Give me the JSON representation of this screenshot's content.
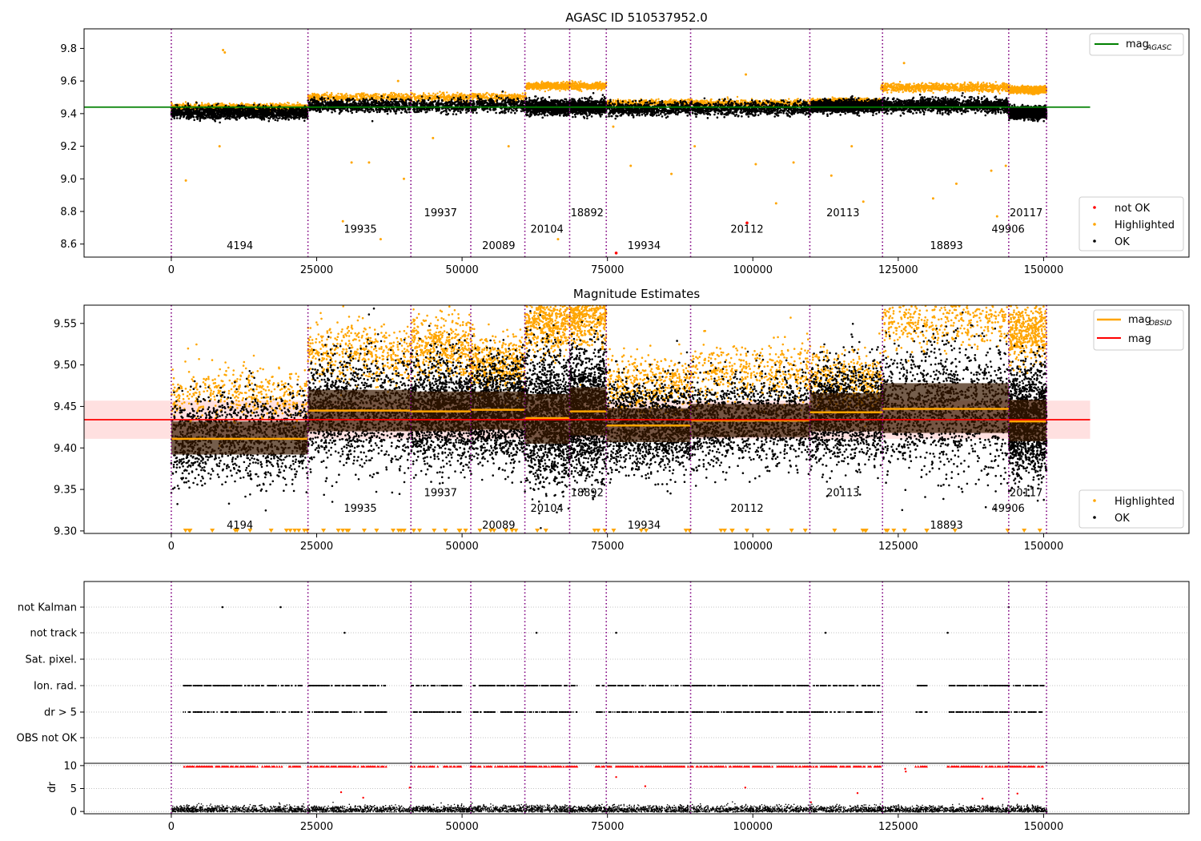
{
  "chart_data": [
    {
      "type": "scatter",
      "title": "AGASC ID 510537952.0",
      "xlim": [
        -15000,
        175000
      ],
      "ylim": [
        8.52,
        9.92
      ],
      "xticks": [
        0,
        25000,
        50000,
        75000,
        100000,
        125000,
        150000
      ],
      "xtick_labels": [
        "0",
        "25000",
        "50000",
        "75000",
        "100000",
        "125000",
        "150000"
      ],
      "yticks": [
        8.6,
        8.8,
        9.0,
        9.2,
        9.4,
        9.6,
        9.8
      ],
      "ytick_labels": [
        "8.6",
        "8.8",
        "9.0",
        "9.2",
        "9.4",
        "9.6",
        "9.8"
      ],
      "legend_top": {
        "placement": "upper-right",
        "entries": [
          {
            "label": "mag",
            "sub": "AGASC",
            "color": "#008000",
            "kind": "line"
          }
        ]
      },
      "legend_bottom": {
        "placement": "lower-right",
        "entries": [
          {
            "label": "not OK",
            "color": "#ff0000",
            "kind": "dot"
          },
          {
            "label": "Highlighted",
            "color": "#ffa500",
            "kind": "dot"
          },
          {
            "label": "OK",
            "color": "#000000",
            "kind": "dot"
          }
        ]
      },
      "mag_agasc": 9.44,
      "series": [
        {
          "name": "OK",
          "color": "#000000",
          "segments": [
            {
              "x": [
                0,
                23500
              ],
              "center": 9.405,
              "spread": 0.035
            },
            {
              "x": [
                23500,
                61000
              ],
              "center": 9.45,
              "spread": 0.04
            },
            {
              "x": [
                61000,
                74800
              ],
              "center": 9.44,
              "spread": 0.045
            },
            {
              "x": [
                74800,
                110000
              ],
              "center": 9.43,
              "spread": 0.04
            },
            {
              "x": [
                110000,
                122000
              ],
              "center": 9.445,
              "spread": 0.035
            },
            {
              "x": [
                122000,
                144000
              ],
              "center": 9.45,
              "spread": 0.04
            },
            {
              "x": [
                144000,
                150500
              ],
              "center": 9.405,
              "spread": 0.035
            }
          ]
        },
        {
          "name": "Highlighted",
          "color": "#ffa500",
          "segments": [
            {
              "x": [
                0,
                23500
              ],
              "center": 9.44,
              "spread": 0.02
            },
            {
              "x": [
                23500,
                61000
              ],
              "center": 9.5,
              "spread": 0.025
            },
            {
              "x": [
                61000,
                74800
              ],
              "center": 9.57,
              "spread": 0.02
            },
            {
              "x": [
                74800,
                110000
              ],
              "center": 9.465,
              "spread": 0.02
            },
            {
              "x": [
                110000,
                122000
              ],
              "center": 9.475,
              "spread": 0.015
            },
            {
              "x": [
                122000,
                144000
              ],
              "center": 9.56,
              "spread": 0.025
            },
            {
              "x": [
                144000,
                150500
              ],
              "center": 9.545,
              "spread": 0.02
            }
          ],
          "outliers": [
            [
              8900,
              9.79
            ],
            [
              9200,
              9.775
            ],
            [
              2500,
              8.99
            ],
            [
              8300,
              9.2
            ],
            [
              36000,
              8.63
            ],
            [
              29500,
              8.74
            ],
            [
              39000,
              9.6
            ],
            [
              40000,
              9.0
            ],
            [
              31000,
              9.1
            ],
            [
              34000,
              9.1
            ],
            [
              66500,
              8.63
            ],
            [
              76000,
              9.32
            ],
            [
              79000,
              9.08
            ],
            [
              86000,
              9.03
            ],
            [
              98800,
              9.64
            ],
            [
              100500,
              9.09
            ],
            [
              104000,
              8.85
            ],
            [
              107000,
              9.1
            ],
            [
              113500,
              9.02
            ],
            [
              119000,
              8.86
            ],
            [
              126000,
              9.71
            ],
            [
              131000,
              8.88
            ],
            [
              135000,
              8.97
            ],
            [
              141000,
              9.05
            ],
            [
              142000,
              8.77
            ],
            [
              143500,
              9.08
            ],
            [
              58000,
              9.2
            ],
            [
              45000,
              9.25
            ],
            [
              90000,
              9.2
            ],
            [
              117000,
              9.2
            ]
          ]
        },
        {
          "name": "not OK",
          "color": "#ff0000",
          "points": [
            [
              99000,
              8.73
            ],
            [
              76500,
              8.545
            ]
          ]
        }
      ],
      "obsid_boundaries": [
        0,
        23500,
        41200,
        51500,
        60800,
        68500,
        74800,
        89300,
        109800,
        122300,
        144000,
        150500
      ],
      "obsid_labels": [
        {
          "label": "4194",
          "x": 11800,
          "y": 8.57
        },
        {
          "label": "19935",
          "x": 32500,
          "y": 8.67
        },
        {
          "label": "19937",
          "x": 46300,
          "y": 8.77
        },
        {
          "label": "20089",
          "x": 56300,
          "y": 8.57
        },
        {
          "label": "20104",
          "x": 64600,
          "y": 8.67
        },
        {
          "label": "18892",
          "x": 71500,
          "y": 8.77
        },
        {
          "label": "19934",
          "x": 81300,
          "y": 8.57
        },
        {
          "label": "20112",
          "x": 99000,
          "y": 8.67
        },
        {
          "label": "20113",
          "x": 115500,
          "y": 8.77
        },
        {
          "label": "18893",
          "x": 133300,
          "y": 8.57
        },
        {
          "label": "49906",
          "x": 143900,
          "y": 8.67
        },
        {
          "label": "20117",
          "x": 147000,
          "y": 8.77
        }
      ]
    },
    {
      "type": "scatter",
      "title": "Magnitude Estimates",
      "xlim": [
        -15000,
        175000
      ],
      "ylim": [
        9.297,
        9.572
      ],
      "xticks": [
        0,
        25000,
        50000,
        75000,
        100000,
        125000,
        150000
      ],
      "xtick_labels": [
        "0",
        "25000",
        "50000",
        "75000",
        "100000",
        "125000",
        "150000"
      ],
      "yticks": [
        9.3,
        9.35,
        9.4,
        9.45,
        9.5,
        9.55
      ],
      "ytick_labels": [
        "9.30",
        "9.35",
        "9.40",
        "9.45",
        "9.50",
        "9.55"
      ],
      "legend_top": {
        "placement": "upper-right",
        "entries": [
          {
            "label": "mag",
            "sub": "OBSID",
            "color": "#ffa500",
            "kind": "line"
          },
          {
            "label": "mag",
            "sub": "",
            "color": "#ff0000",
            "kind": "line"
          }
        ]
      },
      "legend_bottom": {
        "placement": "lower-right",
        "entries": [
          {
            "label": "Highlighted",
            "color": "#ffa500",
            "kind": "dot"
          },
          {
            "label": "OK",
            "color": "#000000",
            "kind": "dot"
          }
        ]
      },
      "mag": 9.434,
      "mag_band": [
        9.411,
        9.457
      ],
      "mag_obsid": [
        {
          "x": [
            0,
            23500
          ],
          "mag": 9.411,
          "band": [
            9.392,
            9.432
          ]
        },
        {
          "x": [
            23500,
            41200
          ],
          "mag": 9.445,
          "band": [
            9.42,
            9.47
          ]
        },
        {
          "x": [
            41200,
            51500
          ],
          "mag": 9.444,
          "band": [
            9.42,
            9.468
          ]
        },
        {
          "x": [
            51500,
            60800
          ],
          "mag": 9.446,
          "band": [
            9.422,
            9.468
          ]
        },
        {
          "x": [
            60800,
            68500
          ],
          "mag": 9.436,
          "band": [
            9.405,
            9.465
          ]
        },
        {
          "x": [
            68500,
            74800
          ],
          "mag": 9.444,
          "band": [
            9.415,
            9.473
          ]
        },
        {
          "x": [
            74800,
            89300
          ],
          "mag": 9.427,
          "band": [
            9.407,
            9.448
          ]
        },
        {
          "x": [
            89300,
            109800
          ],
          "mag": 9.433,
          "band": [
            9.413,
            9.453
          ]
        },
        {
          "x": [
            109800,
            122300
          ],
          "mag": 9.443,
          "band": [
            9.42,
            9.466
          ]
        },
        {
          "x": [
            122300,
            144000
          ],
          "mag": 9.447,
          "band": [
            9.418,
            9.478
          ]
        },
        {
          "x": [
            144000,
            150500
          ],
          "mag": 9.432,
          "band": [
            9.408,
            9.458
          ]
        }
      ],
      "obsid_labels": [
        {
          "label": "4194",
          "x": 11800,
          "y": 9.303
        },
        {
          "label": "19935",
          "x": 32500,
          "y": 9.323
        },
        {
          "label": "19937",
          "x": 46300,
          "y": 9.342
        },
        {
          "label": "20089",
          "x": 56300,
          "y": 9.303
        },
        {
          "label": "20104",
          "x": 64600,
          "y": 9.323
        },
        {
          "label": "18892",
          "x": 71500,
          "y": 9.342
        },
        {
          "label": "19934",
          "x": 81300,
          "y": 9.303
        },
        {
          "label": "20112",
          "x": 99000,
          "y": 9.323
        },
        {
          "label": "20113",
          "x": 115500,
          "y": 9.342
        },
        {
          "label": "18893",
          "x": 133300,
          "y": 9.303
        },
        {
          "label": "49906",
          "x": 143900,
          "y": 9.323
        },
        {
          "label": "20117",
          "x": 147000,
          "y": 9.342
        }
      ]
    },
    {
      "type": "scatter",
      "title": "",
      "xlim": [
        -15000,
        175000
      ],
      "xticks": [
        0,
        25000,
        50000,
        75000,
        100000,
        125000,
        150000
      ],
      "xtick_labels": [
        "0",
        "25000",
        "50000",
        "75000",
        "100000",
        "125000",
        "150000"
      ],
      "flag_rows": [
        "not Kalman",
        "not track",
        "Sat. pixel.",
        "Ion. rad.",
        "dr > 5",
        "OBS not OK"
      ],
      "flag_points": {
        "not Kalman": [
          8800,
          18800,
          144000
        ],
        "not track": [
          29800,
          62800,
          76500,
          112500,
          133500
        ],
        "Sat. pixel.": [],
        "Ion. rad.": {
          "ranges": [
            [
              2000,
              22500
            ],
            [
              23500,
              37000
            ],
            [
              41200,
              50000
            ],
            [
              51500,
              70000
            ],
            [
              73000,
              74500
            ],
            [
              75000,
              110000
            ],
            [
              110000,
              122000
            ],
            [
              128000,
              130000
            ],
            [
              133500,
              150000
            ]
          ]
        },
        "dr > 5": {
          "ranges": [
            [
              2000,
              22500
            ],
            [
              23500,
              37000
            ],
            [
              41200,
              50000
            ],
            [
              51500,
              70000
            ],
            [
              73000,
              74500
            ],
            [
              75000,
              110000
            ],
            [
              110000,
              122000
            ],
            [
              128000,
              130000
            ],
            [
              133500,
              150000
            ]
          ]
        },
        "OBS not OK": []
      },
      "dr_ylabel": "dr",
      "dr_ylim": [
        -0.5,
        10.5
      ],
      "dr_yticks": [
        0,
        5,
        10
      ],
      "dr_ytick_labels": [
        "0",
        "5",
        "10"
      ],
      "dr_series": [
        {
          "name": "dr",
          "color": "#000000",
          "center": 0.6,
          "spread": 0.6
        },
        {
          "name": "dr > 5",
          "color": "#ff0000",
          "center": 9.8,
          "outliers": [
            [
              29200,
              4.2
            ],
            [
              33000,
              3.0
            ],
            [
              41000,
              5.2
            ],
            [
              76500,
              7.5
            ],
            [
              81500,
              5.5
            ],
            [
              98700,
              5.2
            ],
            [
              110000,
              2.0
            ],
            [
              118000,
              4.0
            ],
            [
              126200,
              9.3
            ],
            [
              126300,
              8.7
            ],
            [
              139500,
              2.8
            ],
            [
              145500,
              3.9
            ]
          ]
        }
      ]
    }
  ]
}
